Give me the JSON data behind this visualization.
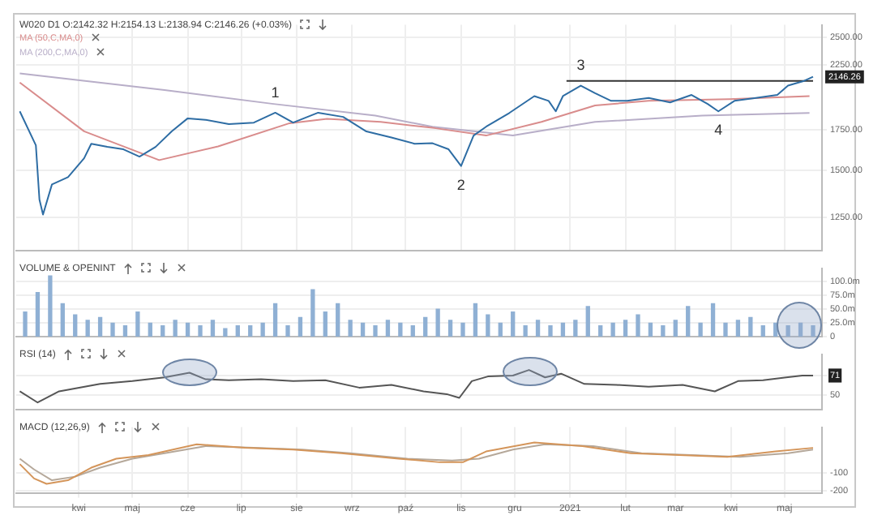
{
  "chart_data": [
    {
      "type": "line",
      "title": "W020 D1 O:2142.32 H:2154.13 L:2138.94 C:2146.26 (+0.03%)",
      "log": true,
      "grid": true,
      "legend": "top left",
      "marker": "none",
      "tick_labels": "y",
      "xlim": [
        "2020-02-26",
        "2021-05-22"
      ],
      "xticks": [
        {
          "value": "2020-04-01",
          "label": null
        },
        {
          "value": "2020-05-01",
          "label": null
        },
        {
          "value": "2020-06-01",
          "label": null
        },
        {
          "value": "2020-07-01",
          "label": null
        },
        {
          "value": "2020-08-01",
          "label": null
        },
        {
          "value": "2020-09-01",
          "label": null
        },
        {
          "value": "2020-10-01",
          "label": null
        },
        {
          "value": "2020-11-01",
          "label": null
        },
        {
          "value": "2020-12-01",
          "label": null
        },
        {
          "value": "2021-01-01",
          "label": null
        },
        {
          "value": "2021-02-01",
          "label": null
        },
        {
          "value": "2021-03-01",
          "label": null
        },
        {
          "value": "2021-04-01",
          "label": null
        },
        {
          "value": "2021-05-01",
          "label": null
        }
      ],
      "ylim": [
        1100,
        2620
      ],
      "yticks": [
        {
          "value": 1250,
          "label": "1250.00"
        },
        {
          "value": 1500,
          "label": "1500.00"
        },
        {
          "value": 1750,
          "label": "1750.00"
        },
        {
          "value": 2250,
          "label": "2250.00"
        },
        {
          "value": 2500,
          "label": "2500.00"
        }
      ],
      "annotations": [
        {
          "text": "1",
          "x": "2020-07-20",
          "y": 1870
        },
        {
          "text": "2",
          "x": "2020-11-01",
          "y": 1524
        },
        {
          "text": "3",
          "x": "2021-01-07",
          "y": 2075
        },
        {
          "text": "4",
          "x": "2021-03-25",
          "y": 1880
        }
      ],
      "series": [
        {
          "color": "#2e6da4",
          "x": [
            "2020-02-28",
            "2020-03-08",
            "2020-03-10",
            "2020-03-12",
            "2020-03-17",
            "2020-03-26",
            "2020-04-04",
            "2020-04-08",
            "2020-04-17",
            "2020-04-26",
            "2020-05-05",
            "2020-05-14",
            "2020-05-23",
            "2020-06-01",
            "2020-06-11",
            "2020-06-24",
            "2020-07-08",
            "2020-07-20",
            "2020-07-30",
            "2020-08-13",
            "2020-08-27",
            "2020-09-09",
            "2020-09-23",
            "2020-10-06",
            "2020-10-16",
            "2020-10-25",
            "2020-11-01",
            "2020-11-08",
            "2020-11-15",
            "2020-11-28",
            "2020-12-12",
            "2020-12-20",
            "2020-12-24",
            "2020-12-28",
            "2021-01-07",
            "2021-01-15",
            "2021-01-24",
            "2021-02-02",
            "2021-02-14",
            "2021-02-26",
            "2021-03-10",
            "2021-03-19",
            "2021-03-25",
            "2021-04-03",
            "2021-04-15",
            "2021-04-27",
            "2021-05-03",
            "2021-05-12",
            "2021-05-17"
          ],
          "values": [
            1880,
            1650,
            1340,
            1265,
            1420,
            1460,
            1570,
            1660,
            1640,
            1625,
            1580,
            1640,
            1740,
            1830,
            1820,
            1790,
            1800,
            1870,
            1800,
            1870,
            1840,
            1740,
            1700,
            1660,
            1663,
            1625,
            1524,
            1713,
            1772,
            1868,
            1993,
            1957,
            1880,
            1993,
            2075,
            2015,
            1957,
            1957,
            1979,
            1945,
            2002,
            1934,
            1880,
            1957,
            1979,
            2002,
            2075,
            2113,
            2146.26
          ],
          "value_labels": [
            null,
            null,
            null,
            null,
            null,
            null,
            null,
            null,
            null,
            null,
            null,
            null,
            null,
            null,
            null,
            null,
            null,
            null,
            null,
            null,
            null,
            null,
            null,
            null,
            null,
            null,
            null,
            null,
            null,
            null,
            null,
            null,
            null,
            null,
            null,
            null,
            null,
            null,
            null,
            null,
            null,
            null,
            null,
            null,
            null,
            null,
            null,
            null,
            "2146.26"
          ]
        },
        {
          "name": "MA (50,C,MA,0)",
          "color": "#d98c8c",
          "x": [
            "2020-02-28",
            "2020-04-04",
            "2020-05-16",
            "2020-06-18",
            "2020-07-28",
            "2020-08-18",
            "2020-09-17",
            "2020-10-17",
            "2020-11-15",
            "2020-12-16",
            "2021-01-15",
            "2021-02-14",
            "2021-03-31",
            "2021-05-15"
          ],
          "values": [
            2100,
            1741,
            1559,
            1643,
            1796,
            1826,
            1805,
            1763,
            1713,
            1805,
            1923,
            1957,
            1970,
            1993
          ]
        },
        {
          "name": "MA (200,C,MA,0)",
          "color": "#b8aec8",
          "x": [
            "2020-02-28",
            "2020-05-19",
            "2020-07-19",
            "2020-09-14",
            "2020-10-16",
            "2020-11-30",
            "2021-01-15",
            "2021-03-16",
            "2021-05-15"
          ],
          "values": [
            2174,
            2040,
            1934,
            1849,
            1772,
            1713,
            1805,
            1849,
            1868
          ]
        },
        {
          "color": "#333333",
          "x": [
            "2020-12-30",
            "2021-05-17"
          ],
          "values": [
            2113,
            2113
          ]
        }
      ]
    },
    {
      "type": "bar",
      "title": "VOLUME & OPENINT",
      "grid": true,
      "tick_labels": "y",
      "xlim": [
        "2020-02-26",
        "2021-05-22"
      ],
      "ylim": [
        0,
        124
      ],
      "yticks": [
        {
          "value": 0,
          "label": "0"
        },
        {
          "value": 25,
          "label": "25.0m"
        },
        {
          "value": 50,
          "label": "50.0m"
        },
        {
          "value": 75,
          "label": "75.0m"
        },
        {
          "value": 100,
          "label": "100.0m"
        }
      ],
      "x": [
        "2020-03-02",
        "2020-03-09",
        "2020-03-16",
        "2020-03-23",
        "2020-03-30",
        "2020-04-06",
        "2020-04-13",
        "2020-04-20",
        "2020-04-27",
        "2020-05-04",
        "2020-05-11",
        "2020-05-18",
        "2020-05-25",
        "2020-06-01",
        "2020-06-08",
        "2020-06-15",
        "2020-06-22",
        "2020-06-29",
        "2020-07-06",
        "2020-07-13",
        "2020-07-20",
        "2020-07-27",
        "2020-08-03",
        "2020-08-10",
        "2020-08-17",
        "2020-08-24",
        "2020-08-31",
        "2020-09-07",
        "2020-09-14",
        "2020-09-21",
        "2020-09-28",
        "2020-10-05",
        "2020-10-12",
        "2020-10-19",
        "2020-10-26",
        "2020-11-02",
        "2020-11-09",
        "2020-11-16",
        "2020-11-23",
        "2020-11-30",
        "2020-12-07",
        "2020-12-14",
        "2020-12-21",
        "2020-12-28",
        "2021-01-04",
        "2021-01-11",
        "2021-01-18",
        "2021-01-25",
        "2021-02-01",
        "2021-02-08",
        "2021-02-15",
        "2021-02-22",
        "2021-03-01",
        "2021-03-08",
        "2021-03-15",
        "2021-03-22",
        "2021-03-29",
        "2021-04-05",
        "2021-04-12",
        "2021-04-19",
        "2021-04-26",
        "2021-05-03",
        "2021-05-10",
        "2021-05-17"
      ],
      "series": [
        {
          "color": "#8fb0d4",
          "values": [
            45,
            80,
            110,
            60,
            40,
            30,
            35,
            25,
            20,
            45,
            25,
            20,
            30,
            25,
            20,
            30,
            15,
            20,
            20,
            25,
            60,
            20,
            35,
            85,
            45,
            60,
            30,
            25,
            20,
            30,
            25,
            20,
            35,
            50,
            30,
            25,
            60,
            40,
            25,
            45,
            20,
            30,
            20,
            25,
            30,
            55,
            20,
            25,
            30,
            40,
            25,
            20,
            30,
            55,
            25,
            60,
            25,
            30,
            35,
            20,
            25,
            20,
            25,
            20
          ]
        }
      ]
    },
    {
      "type": "line",
      "title": "RSI (14)",
      "grid": "y",
      "tick_labels": "y",
      "marker": "none",
      "xlim": [
        "2020-02-26",
        "2021-05-22"
      ],
      "ylim": [
        34,
        94
      ],
      "yticks": [
        50,
        71
      ],
      "series": [
        {
          "color": "#555555",
          "x": [
            "2020-02-28",
            "2020-03-09",
            "2020-03-21",
            "2020-04-13",
            "2020-05-01",
            "2020-05-19",
            "2020-06-02",
            "2020-06-11",
            "2020-06-24",
            "2020-07-12",
            "2020-07-30",
            "2020-08-17",
            "2020-09-05",
            "2020-09-23",
            "2020-10-11",
            "2020-10-24",
            "2020-10-31",
            "2020-11-07",
            "2020-11-16",
            "2020-11-30",
            "2020-12-09",
            "2020-12-18",
            "2020-12-27",
            "2021-01-09",
            "2021-01-27",
            "2021-02-14",
            "2021-03-05",
            "2021-03-23",
            "2021-04-05",
            "2021-04-19",
            "2021-05-02",
            "2021-05-11",
            "2021-05-17"
          ],
          "values": [
            54,
            42,
            54,
            62,
            65,
            69,
            74,
            67,
            66,
            67,
            65,
            66,
            58,
            61,
            54,
            51,
            47,
            65,
            70,
            71,
            77,
            69,
            73,
            62,
            61,
            59,
            61,
            54,
            65,
            66,
            69,
            71,
            71
          ]
        }
      ]
    },
    {
      "type": "line",
      "title": "MACD (12,26,9)",
      "grid": true,
      "marker": "none",
      "xlim": [
        "2020-02-26",
        "2021-05-22"
      ],
      "xticks": [
        {
          "value": "2020-04-01",
          "label": "kwi"
        },
        {
          "value": "2020-05-01",
          "label": "maj"
        },
        {
          "value": "2020-06-01",
          "label": "cze"
        },
        {
          "value": "2020-07-01",
          "label": "lip"
        },
        {
          "value": "2020-08-01",
          "label": "sie"
        },
        {
          "value": "2020-09-01",
          "label": "wrz"
        },
        {
          "value": "2020-10-01",
          "label": "paź"
        },
        {
          "value": "2020-11-01",
          "label": "lis"
        },
        {
          "value": "2020-12-01",
          "label": "gru"
        },
        {
          "value": "2021-01-01",
          "label": "2021"
        },
        {
          "value": "2021-02-01",
          "label": "lut"
        },
        {
          "value": "2021-03-01",
          "label": "mar"
        },
        {
          "value": "2021-04-01",
          "label": "kwi"
        },
        {
          "value": "2021-05-01",
          "label": "maj"
        }
      ],
      "ylim": [
        -210,
        155
      ],
      "yticks": [
        {
          "value": -200,
          "label": "-200"
        },
        {
          "value": -100,
          "label": "-100"
        }
      ],
      "series": [
        {
          "color": "#d4955a",
          "x": [
            "2020-02-28",
            "2020-03-07",
            "2020-03-14",
            "2020-03-26",
            "2020-04-08",
            "2020-04-22",
            "2020-05-10",
            "2020-06-06",
            "2020-07-03",
            "2020-07-30",
            "2020-08-26",
            "2020-09-27",
            "2020-10-20",
            "2020-11-02",
            "2020-11-15",
            "2020-12-12",
            "2021-01-08",
            "2021-02-04",
            "2021-03-03",
            "2021-03-30",
            "2021-04-26",
            "2021-05-17"
          ],
          "values": [
            -50,
            -130,
            -160,
            -140,
            -70,
            -20,
            0,
            60,
            40,
            30,
            10,
            -20,
            -40,
            -40,
            20,
            70,
            50,
            10,
            0,
            -10,
            20,
            40
          ]
        },
        {
          "color": "#b5a89a",
          "x": [
            "2020-02-28",
            "2020-03-07",
            "2020-03-17",
            "2020-03-30",
            "2020-04-13",
            "2020-05-01",
            "2020-05-19",
            "2020-06-11",
            "2020-07-08",
            "2020-08-04",
            "2020-08-31",
            "2020-10-02",
            "2020-10-27",
            "2020-11-11",
            "2020-11-30",
            "2020-12-18",
            "2021-01-14",
            "2021-02-10",
            "2021-03-10",
            "2021-04-06",
            "2021-05-03",
            "2021-05-17"
          ],
          "values": [
            -20,
            -80,
            -140,
            -120,
            -70,
            -20,
            10,
            50,
            40,
            30,
            10,
            -20,
            -30,
            -20,
            30,
            60,
            50,
            10,
            0,
            -10,
            10,
            30
          ]
        }
      ]
    }
  ]
}
